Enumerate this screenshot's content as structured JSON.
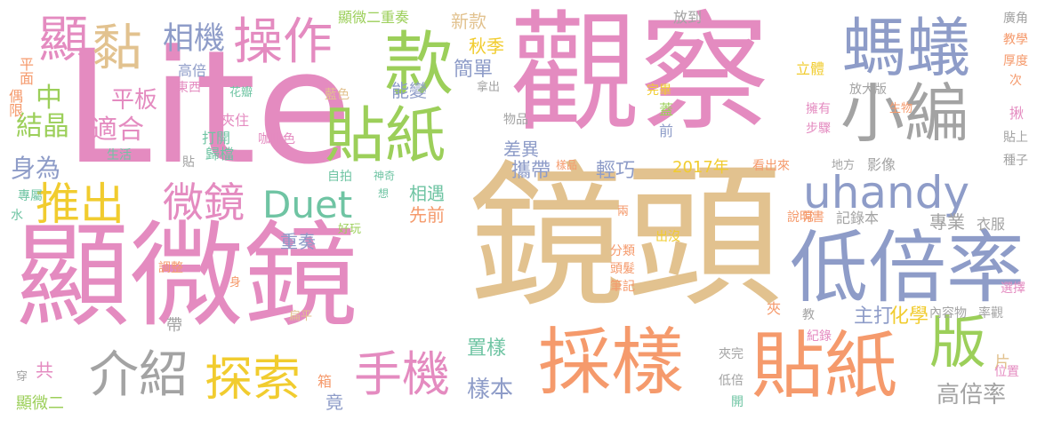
{
  "colors": {
    "pink": "#e48bc0",
    "tan": "#e2c28f",
    "blue": "#8e9cc8",
    "orange": "#f59a6c",
    "green": "#9ccf5a",
    "yellow": "#f1cc2f",
    "gray": "#a3a3a3",
    "teal": "#6fc4a3"
  },
  "words": [
    {
      "text": "鏡頭",
      "color": "tan"
    },
    {
      "text": "顯微鏡",
      "color": "pink"
    },
    {
      "text": "Lite",
      "color": "pink"
    },
    {
      "text": "觀察",
      "color": "pink"
    },
    {
      "text": "採樣",
      "color": "orange"
    },
    {
      "text": "貼紙",
      "color": "orange"
    },
    {
      "text": "低倍率",
      "color": "blue"
    },
    {
      "text": "小編",
      "color": "gray"
    },
    {
      "text": "螞蟻",
      "color": "blue"
    },
    {
      "text": "uhandy",
      "color": "blue"
    },
    {
      "text": "款",
      "color": "green"
    },
    {
      "text": "貼紙",
      "color": "green"
    },
    {
      "text": "操作",
      "color": "pink"
    },
    {
      "text": "推出",
      "color": "yellow"
    },
    {
      "text": "微鏡",
      "color": "pink"
    },
    {
      "text": "Duet",
      "color": "teal"
    },
    {
      "text": "介紹",
      "color": "gray"
    },
    {
      "text": "探索",
      "color": "yellow"
    },
    {
      "text": "手機",
      "color": "pink"
    },
    {
      "text": "版",
      "color": "green"
    },
    {
      "text": "顯",
      "color": "pink"
    },
    {
      "text": "黏",
      "color": "tan"
    },
    {
      "text": "相機",
      "color": "blue"
    },
    {
      "text": "高倍",
      "color": "blue"
    },
    {
      "text": "平板",
      "color": "pink"
    },
    {
      "text": "適合",
      "color": "pink"
    },
    {
      "text": "結晶",
      "color": "green"
    },
    {
      "text": "中",
      "color": "green"
    },
    {
      "text": "身為",
      "color": "blue"
    },
    {
      "text": "平面",
      "color": "orange"
    },
    {
      "text": "偶限",
      "color": "orange"
    },
    {
      "text": "生活",
      "color": "teal"
    },
    {
      "text": "專屬",
      "color": "teal"
    },
    {
      "text": "水",
      "color": "teal"
    },
    {
      "text": "東西",
      "color": "pink"
    },
    {
      "text": "花瓣",
      "color": "teal"
    },
    {
      "text": "藍色",
      "color": "tan"
    },
    {
      "text": "夾住",
      "color": "pink"
    },
    {
      "text": "打開",
      "color": "teal"
    },
    {
      "text": "歸檔",
      "color": "teal"
    },
    {
      "text": "咖啡色",
      "color": "pink"
    },
    {
      "text": "貼",
      "color": "gray"
    },
    {
      "text": "自拍",
      "color": "teal"
    },
    {
      "text": "神奇",
      "color": "teal"
    },
    {
      "text": "想",
      "color": "teal"
    },
    {
      "text": "好玩",
      "color": "green"
    },
    {
      "text": "顯微二重奏",
      "color": "green"
    },
    {
      "text": "新款",
      "color": "tan"
    },
    {
      "text": "秋季",
      "color": "yellow"
    },
    {
      "text": "簡單",
      "color": "blue"
    },
    {
      "text": "能變",
      "color": "blue"
    },
    {
      "text": "拿出",
      "color": "gray"
    },
    {
      "text": "物品",
      "color": "gray"
    },
    {
      "text": "差異",
      "color": "blue"
    },
    {
      "text": "攜帶",
      "color": "blue"
    },
    {
      "text": "輕巧",
      "color": "blue"
    },
    {
      "text": "相遇",
      "color": "teal"
    },
    {
      "text": "先前",
      "color": "orange"
    },
    {
      "text": "重奏",
      "color": "blue"
    },
    {
      "text": "調整",
      "color": "orange"
    },
    {
      "text": "身",
      "color": "orange"
    },
    {
      "text": "扁平",
      "color": "tan"
    },
    {
      "text": "帶",
      "color": "gray"
    },
    {
      "text": "箱",
      "color": "orange"
    },
    {
      "text": "竟",
      "color": "blue"
    },
    {
      "text": "共",
      "color": "pink"
    },
    {
      "text": "顯微二",
      "color": "green"
    },
    {
      "text": "穿",
      "color": "gray"
    },
    {
      "text": "放到",
      "color": "gray"
    },
    {
      "text": "立體",
      "color": "yellow"
    },
    {
      "text": "完畢",
      "color": "yellow"
    },
    {
      "text": "蓋",
      "color": "green"
    },
    {
      "text": "前",
      "color": "blue"
    },
    {
      "text": "2017年",
      "color": "yellow"
    },
    {
      "text": "樣品",
      "color": "orange"
    },
    {
      "text": "看出來",
      "color": "orange"
    },
    {
      "text": "地方",
      "color": "gray"
    },
    {
      "text": "影像",
      "color": "gray"
    },
    {
      "text": "兩",
      "color": "orange"
    },
    {
      "text": "分類",
      "color": "orange"
    },
    {
      "text": "頭髮",
      "color": "orange"
    },
    {
      "text": "筆記",
      "color": "orange"
    },
    {
      "text": "出沒",
      "color": "yellow"
    },
    {
      "text": "說明書",
      "color": "orange"
    },
    {
      "text": "記錄本",
      "color": "gray"
    },
    {
      "text": "常",
      "color": "orange"
    },
    {
      "text": "專業",
      "color": "gray"
    },
    {
      "text": "衣服",
      "color": "gray"
    },
    {
      "text": "主打",
      "color": "blue"
    },
    {
      "text": "化學",
      "color": "yellow"
    },
    {
      "text": "內容物",
      "color": "gray"
    },
    {
      "text": "率觀",
      "color": "gray"
    },
    {
      "text": "置樣",
      "color": "teal"
    },
    {
      "text": "樣本",
      "color": "blue"
    },
    {
      "text": "教",
      "color": "gray"
    },
    {
      "text": "夾",
      "color": "orange"
    },
    {
      "text": "紀錄",
      "color": "pink"
    },
    {
      "text": "夾完",
      "color": "gray"
    },
    {
      "text": "低倍",
      "color": "gray"
    },
    {
      "text": "開",
      "color": "teal"
    },
    {
      "text": "片",
      "color": "tan"
    },
    {
      "text": "高倍率",
      "color": "gray"
    },
    {
      "text": "位置",
      "color": "pink"
    },
    {
      "text": "選擇",
      "color": "pink"
    },
    {
      "text": "廣角",
      "color": "gray"
    },
    {
      "text": "教學",
      "color": "orange"
    },
    {
      "text": "厚度",
      "color": "orange"
    },
    {
      "text": "次",
      "color": "orange"
    },
    {
      "text": "放大版",
      "color": "gray"
    },
    {
      "text": "生物",
      "color": "orange"
    },
    {
      "text": "擁有",
      "color": "pink"
    },
    {
      "text": "步驟",
      "color": "pink"
    },
    {
      "text": "揪",
      "color": "pink"
    },
    {
      "text": "貼上",
      "color": "gray"
    },
    {
      "text": "種子",
      "color": "gray"
    }
  ]
}
